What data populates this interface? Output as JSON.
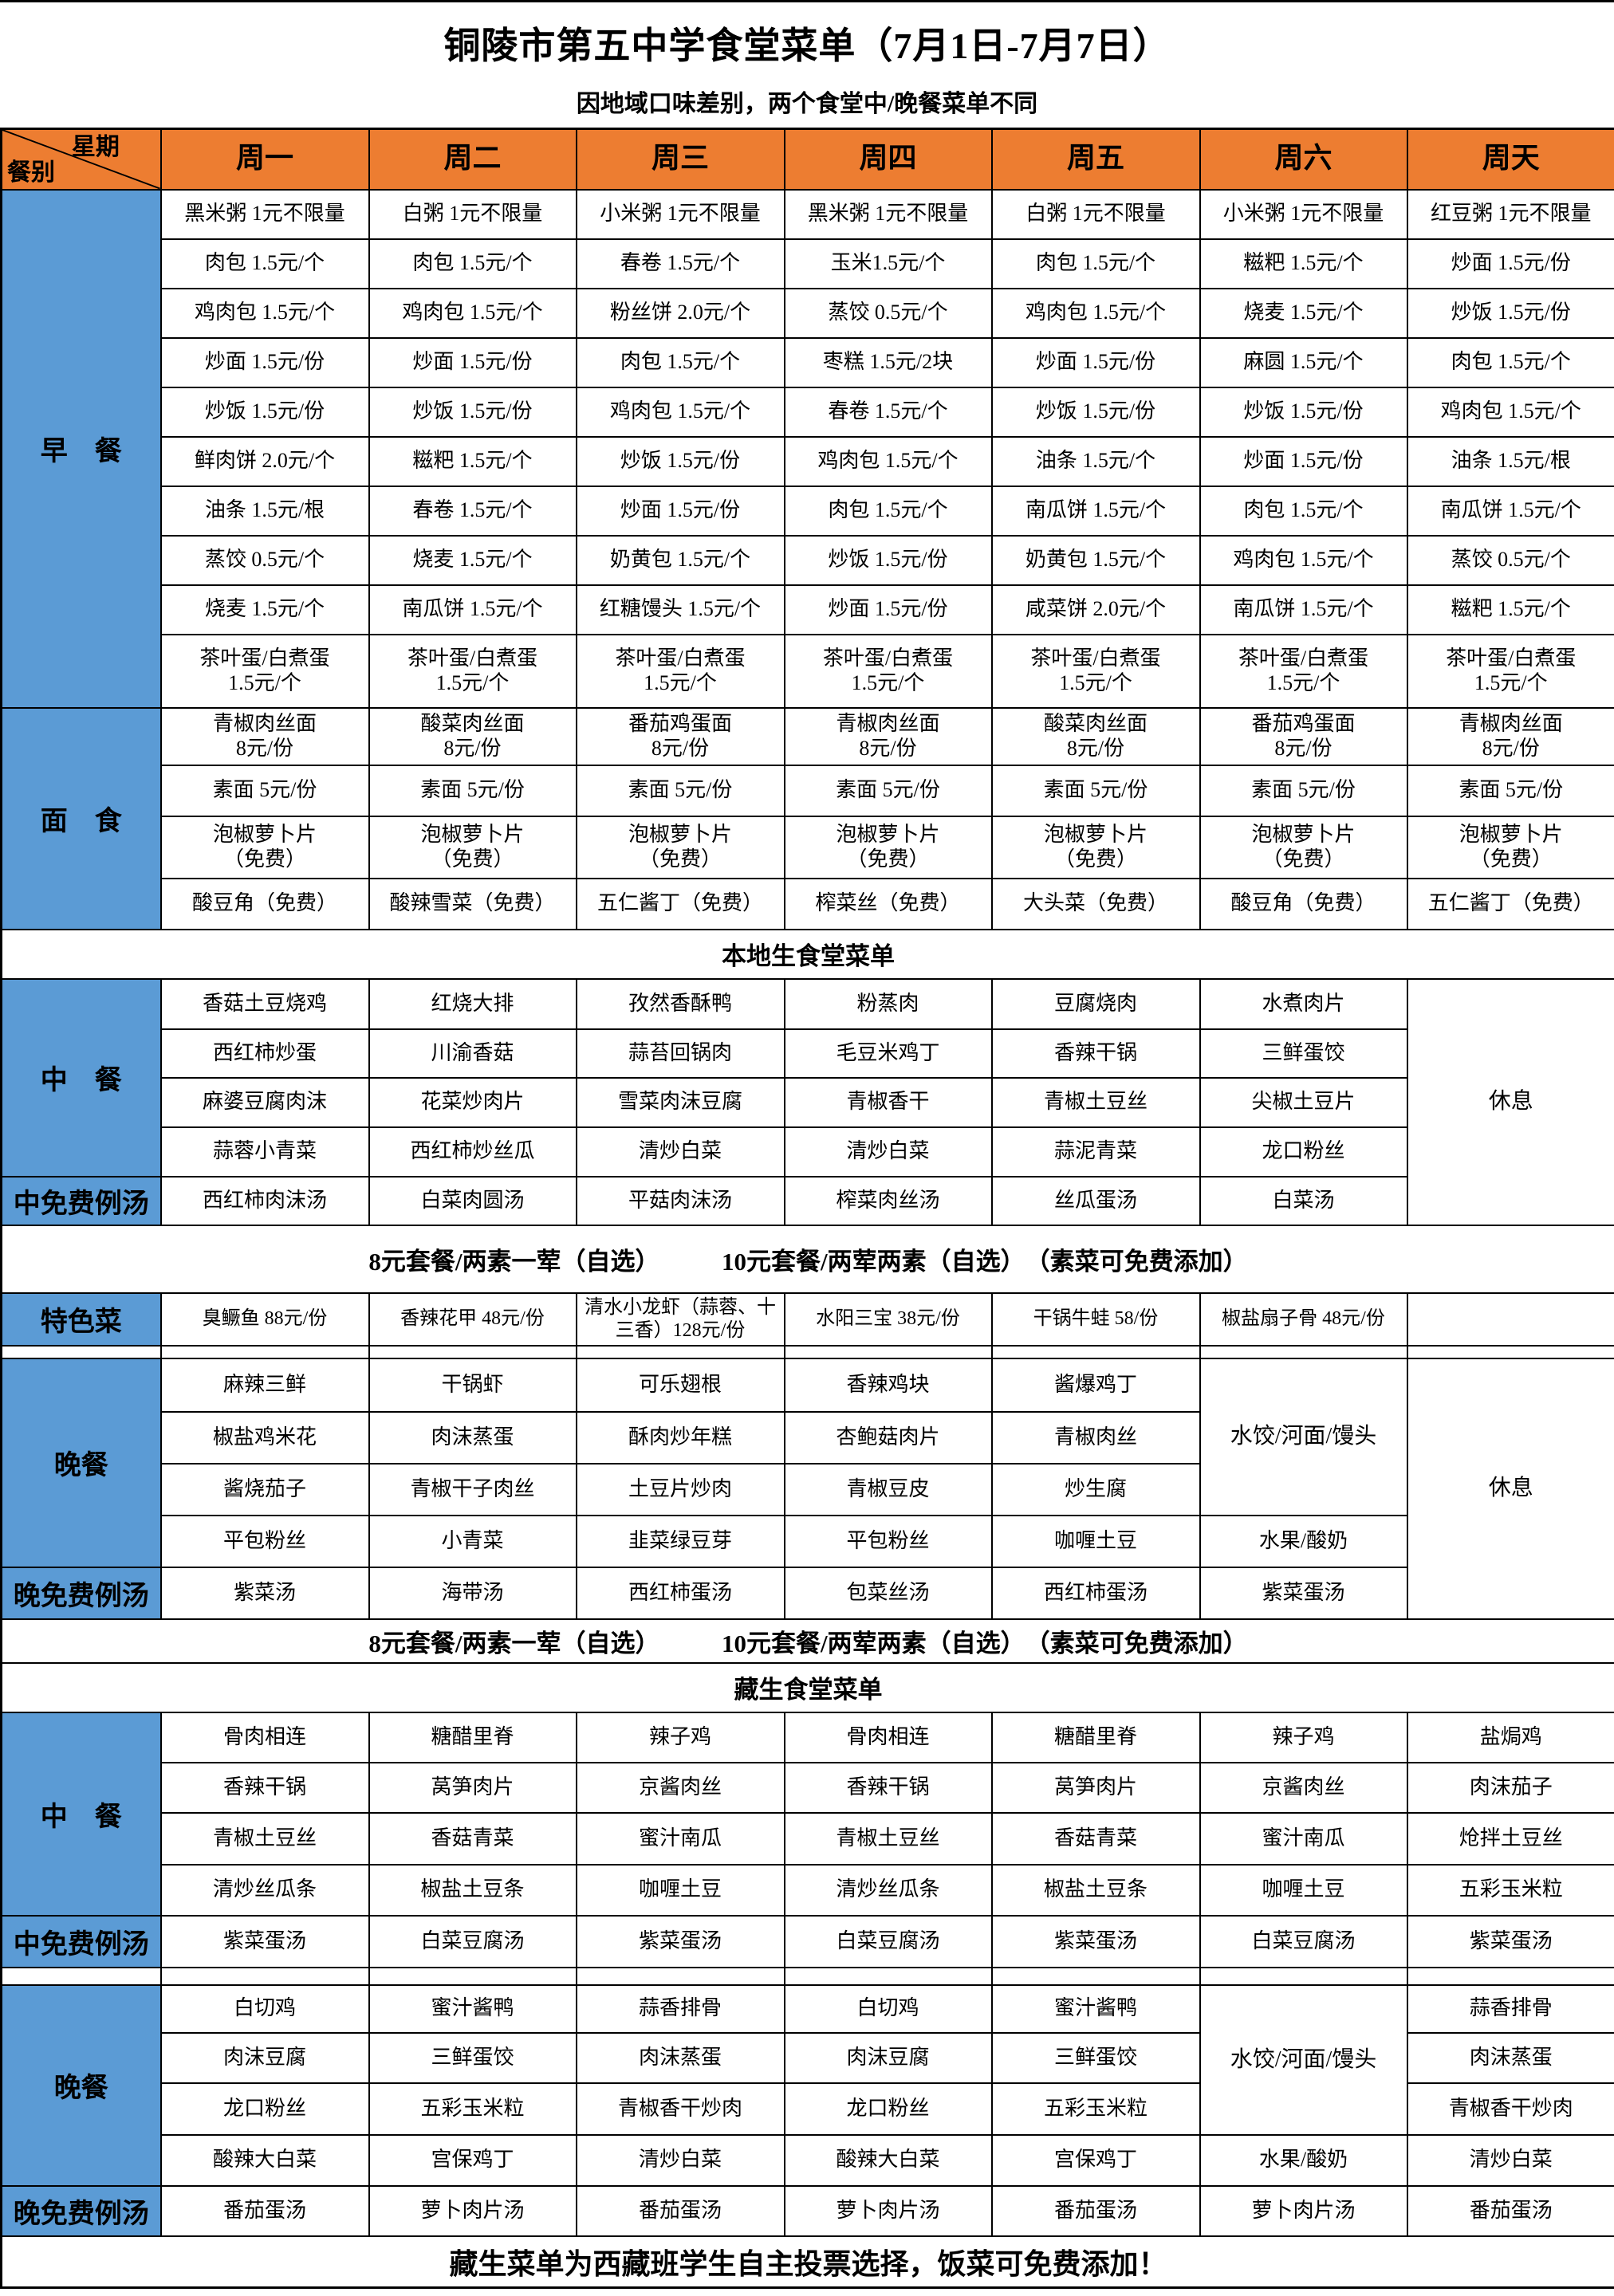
{
  "page": {
    "title": "铜陵市第五中学食堂菜单（7月1日-7月7日）",
    "subtitle": "因地域口味差别，两个食堂中/晚餐菜单不同"
  },
  "colors": {
    "header_bg": "#ED7D31",
    "label_bg": "#5B9BD5",
    "border": "#000000"
  },
  "header": {
    "corner_top": "星期",
    "corner_bottom": "餐别",
    "days": [
      "周一",
      "周二",
      "周三",
      "周四",
      "周五",
      "周六",
      "周天"
    ]
  },
  "menu": {
    "breakfast": {
      "label": "早　餐",
      "rows": [
        [
          "黑米粥 1元不限量",
          "白粥 1元不限量",
          "小米粥 1元不限量",
          "黑米粥 1元不限量",
          "白粥 1元不限量",
          "小米粥 1元不限量",
          "红豆粥 1元不限量"
        ],
        [
          "肉包 1.5元/个",
          "肉包 1.5元/个",
          "春卷 1.5元/个",
          "玉米1.5元/个",
          "肉包 1.5元/个",
          "糍粑 1.5元/个",
          "炒面 1.5元/份"
        ],
        [
          "鸡肉包 1.5元/个",
          "鸡肉包 1.5元/个",
          "粉丝饼 2.0元/个",
          "蒸饺 0.5元/个",
          "鸡肉包 1.5元/个",
          "烧麦 1.5元/个",
          "炒饭 1.5元/份"
        ],
        [
          "炒面 1.5元/份",
          "炒面 1.5元/份",
          "肉包 1.5元/个",
          "枣糕 1.5元/2块",
          "炒面 1.5元/份",
          "麻圆 1.5元/个",
          "肉包 1.5元/个"
        ],
        [
          "炒饭 1.5元/份",
          "炒饭 1.5元/份",
          "鸡肉包 1.5元/个",
          "春卷 1.5元/个",
          "炒饭 1.5元/份",
          "炒饭 1.5元/份",
          "鸡肉包 1.5元/个"
        ],
        [
          "鲜肉饼 2.0元/个",
          "糍粑 1.5元/个",
          "炒饭 1.5元/份",
          "鸡肉包 1.5元/个",
          "油条 1.5元/个",
          "炒面 1.5元/份",
          "油条 1.5元/根"
        ],
        [
          "油条 1.5元/根",
          "春卷 1.5元/个",
          "炒面 1.5元/份",
          "肉包 1.5元/个",
          "南瓜饼 1.5元/个",
          "肉包 1.5元/个",
          "南瓜饼 1.5元/个"
        ],
        [
          "蒸饺 0.5元/个",
          "烧麦 1.5元/个",
          "奶黄包 1.5元/个",
          "炒饭 1.5元/份",
          "奶黄包 1.5元/个",
          "鸡肉包 1.5元/个",
          "蒸饺 0.5元/个"
        ],
        [
          "烧麦 1.5元/个",
          "南瓜饼 1.5元/个",
          "红糖馒头 1.5元/个",
          "炒面 1.5元/份",
          "咸菜饼 2.0元/个",
          "南瓜饼 1.5元/个",
          "糍粑 1.5元/个"
        ],
        [
          "茶叶蛋/白煮蛋\n1.5元/个",
          "茶叶蛋/白煮蛋\n1.5元/个",
          "茶叶蛋/白煮蛋\n1.5元/个",
          "茶叶蛋/白煮蛋\n1.5元/个",
          "茶叶蛋/白煮蛋\n1.5元/个",
          "茶叶蛋/白煮蛋\n1.5元/个",
          "茶叶蛋/白煮蛋\n1.5元/个"
        ]
      ]
    },
    "noodles": {
      "label": "面　食",
      "rows": [
        [
          "青椒肉丝面\n8元/份",
          "酸菜肉丝面\n8元/份",
          "番茄鸡蛋面\n8元/份",
          "青椒肉丝面\n8元/份",
          "酸菜肉丝面\n8元/份",
          "番茄鸡蛋面\n8元/份",
          "青椒肉丝面\n8元/份"
        ],
        [
          "素面 5元/份",
          "素面 5元/份",
          "素面 5元/份",
          "素面 5元/份",
          "素面 5元/份",
          "素面 5元/份",
          "素面 5元/份"
        ],
        [
          "泡椒萝卜片\n（免费）",
          "泡椒萝卜片\n（免费）",
          "泡椒萝卜片\n（免费）",
          "泡椒萝卜片\n（免费）",
          "泡椒萝卜片\n（免费）",
          "泡椒萝卜片\n（免费）",
          "泡椒萝卜片\n（免费）"
        ],
        [
          "酸豆角（免费）",
          "酸辣雪菜（免费）",
          "五仁酱丁（免费）",
          "榨菜丝（免费）",
          "大头菜（免费）",
          "酸豆角（免费）",
          "五仁酱丁（免费）"
        ]
      ]
    },
    "local_title": {
      "text": "本地生食堂菜单"
    },
    "lunch_local": {
      "label": "中　餐",
      "rows": [
        [
          "香菇土豆烧鸡",
          "红烧大排",
          "孜然香酥鸭",
          "粉蒸肉",
          "豆腐烧肉",
          "水煮肉片",
          {
            "t": "休息",
            "rs": 5
          }
        ],
        [
          "西红柿炒蛋",
          "川渝香菇",
          "蒜苔回锅肉",
          "毛豆米鸡丁",
          "香辣干锅",
          "三鲜蛋饺"
        ],
        [
          "麻婆豆腐肉沫",
          "花菜炒肉片",
          "雪菜肉沫豆腐",
          "青椒香干",
          "青椒土豆丝",
          "尖椒土豆片"
        ],
        [
          "蒜蓉小青菜",
          "西红柿炒丝瓜",
          "清炒白菜",
          "清炒白菜",
          "蒜泥青菜",
          "龙口粉丝"
        ]
      ]
    },
    "lunch_local_soup": {
      "label": "中免费例汤",
      "rows": [
        [
          "西红柿肉沫汤",
          "白菜肉圆汤",
          "平菇肉沫汤",
          "榨菜肉丝汤",
          "丝瓜蛋汤",
          "白菜汤"
        ]
      ]
    },
    "combo_local": {
      "text": "8元套餐/两素一荤（自选）　　　10元套餐/两荤两素（自选）　（素菜可免费添加）"
    },
    "special": {
      "label": "特色菜",
      "rows": [
        [
          "臭鳜鱼 88元/份",
          "香辣花甲 48元/份",
          "清水小龙虾（蒜蓉、十三香）128元/份",
          "水阳三宝 38元/份",
          "干锅牛蛙 58/份",
          "椒盐扇子骨 48元/份",
          ""
        ]
      ]
    },
    "dinner_local": {
      "label": "晚餐",
      "rows": [
        [
          "麻辣三鲜",
          "干锅虾",
          "可乐翅根",
          "香辣鸡块",
          "酱爆鸡丁",
          {
            "t": "水饺/河面/馒头",
            "rs": 3
          },
          {
            "t": "休息",
            "rs": 5
          }
        ],
        [
          "椒盐鸡米花",
          "肉沫蒸蛋",
          "酥肉炒年糕",
          "杏鲍菇肉片",
          "青椒肉丝"
        ],
        [
          "酱烧茄子",
          "青椒干子肉丝",
          "土豆片炒肉",
          "青椒豆皮",
          "炒生腐"
        ],
        [
          "平包粉丝",
          "小青菜",
          "韭菜绿豆芽",
          "平包粉丝",
          "咖喱土豆",
          "水果/酸奶"
        ]
      ]
    },
    "dinner_local_soup": {
      "label": "晚免费例汤",
      "rows": [
        [
          "紫菜汤",
          "海带汤",
          "西红柿蛋汤",
          "包菜丝汤",
          "西红柿蛋汤",
          "紫菜蛋汤"
        ]
      ]
    },
    "combo_zang": {
      "text": "8元套餐/两素一荤（自选）　　　10元套餐/两荤两素（自选）　（素菜可免费添加）"
    },
    "zang_title": {
      "text": "藏生食堂菜单"
    },
    "lunch_zang": {
      "label": "中　餐",
      "rows": [
        [
          "骨肉相连",
          "糖醋里脊",
          "辣子鸡",
          "骨肉相连",
          "糖醋里脊",
          "辣子鸡",
          "盐焗鸡"
        ],
        [
          "香辣干锅",
          "莴笋肉片",
          "京酱肉丝",
          "香辣干锅",
          "莴笋肉片",
          "京酱肉丝",
          "肉沫茄子"
        ],
        [
          "青椒土豆丝",
          "香菇青菜",
          "蜜汁南瓜",
          "青椒土豆丝",
          "香菇青菜",
          "蜜汁南瓜",
          "炝拌土豆丝"
        ],
        [
          "清炒丝瓜条",
          "椒盐土豆条",
          "咖喱土豆",
          "清炒丝瓜条",
          "椒盐土豆条",
          "咖喱土豆",
          "五彩玉米粒"
        ]
      ]
    },
    "lunch_zang_soup": {
      "label": "中免费例汤",
      "rows": [
        [
          "紫菜蛋汤",
          "白菜豆腐汤",
          "紫菜蛋汤",
          "白菜豆腐汤",
          "紫菜蛋汤",
          "白菜豆腐汤",
          "紫菜蛋汤"
        ]
      ]
    },
    "dinner_zang": {
      "label": "晚餐",
      "rows": [
        [
          "白切鸡",
          "蜜汁酱鸭",
          "蒜香排骨",
          "白切鸡",
          "蜜汁酱鸭",
          {
            "t": "水饺/河面/馒头",
            "rs": 3
          },
          "蒜香排骨"
        ],
        [
          "肉沫豆腐",
          "三鲜蛋饺",
          "肉沫蒸蛋",
          "肉沫豆腐",
          "三鲜蛋饺",
          "肉沫蒸蛋"
        ],
        [
          "龙口粉丝",
          "五彩玉米粒",
          "青椒香干炒肉",
          "龙口粉丝",
          "五彩玉米粒",
          "青椒香干炒肉"
        ],
        [
          "酸辣大白菜",
          "宫保鸡丁",
          "清炒白菜",
          "酸辣大白菜",
          "宫保鸡丁",
          "水果/酸奶",
          "清炒白菜"
        ]
      ]
    },
    "dinner_zang_soup": {
      "label": "晚免费例汤",
      "rows": [
        [
          "番茄蛋汤",
          "萝卜肉片汤",
          "番茄蛋汤",
          "萝卜肉片汤",
          "番茄蛋汤",
          "萝卜肉片汤",
          "番茄蛋汤"
        ]
      ]
    },
    "footer": {
      "text": "藏生菜单为西藏班学生自主投票选择，饭菜可免费添加！"
    }
  }
}
